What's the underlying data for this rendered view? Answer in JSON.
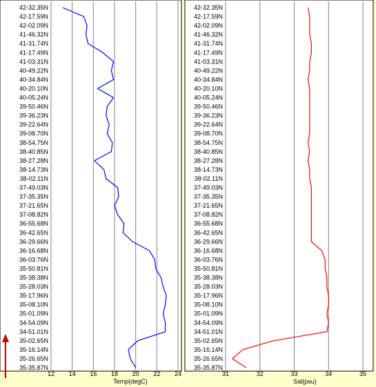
{
  "colors": {
    "background": "#ffffcc",
    "panel": "#ffffff",
    "grid": "#808080",
    "temperature_line": "#0000ff",
    "salinity_line": "#ff0000",
    "arrow": "#cc0000"
  },
  "latitude_labels": [
    "42-32.35N",
    "42-17.59N",
    "42-02.09N",
    "41-46.32N",
    "41-31.74N",
    "41-17.49N",
    "41-03.31N",
    "40-49.22N",
    "40-34.84N",
    "40-20.10N",
    "40-05.24N",
    "39-50.46N",
    "39-36.23N",
    "39-22.64N",
    "39-08.70N",
    "38-54.75N",
    "38-40.85N",
    "38-27.28N",
    "38-14.73N",
    "38-02.11N",
    "37-49.03N",
    "37-35.35N",
    "37-21.65N",
    "37-08.82N",
    "36-55.68N",
    "36-42.65N",
    "36-29.66N",
    "36-16.68N",
    "36-03.76N",
    "35-50.81N",
    "35-38.38N",
    "35-28.03N",
    "35-17.96N",
    "35-08.10N",
    "35-01.09N",
    "34-54.09N",
    "34-51.01N",
    "35-02.65N",
    "35-16.14N",
    "35-26.65N",
    "35-35.87N"
  ],
  "arrow": {
    "direction": "up",
    "icon": "arrow-up-icon"
  },
  "chart_data": [
    {
      "type": "line",
      "orientation": "vertical",
      "xlabel": "Temp(degC)",
      "xlim": [
        12,
        24
      ],
      "xticks": [
        "12",
        "14",
        "16",
        "18",
        "20",
        "22",
        "24"
      ],
      "y_categories_ref": "latitude_labels",
      "series": [
        {
          "color": "#0000ff",
          "values": [
            13.1,
            15.1,
            15.4,
            15.3,
            15.5,
            16.9,
            17.9,
            17.7,
            17.9,
            16.4,
            17.9,
            17.3,
            17.2,
            17.5,
            17.3,
            17.8,
            17.7,
            16.1,
            17.0,
            17.2,
            18.3,
            18.4,
            18.0,
            18.3,
            18.9,
            18.8,
            19.7,
            21.3,
            21.8,
            21.9,
            22.4,
            22.6,
            22.9,
            22.8,
            22.6,
            22.8,
            22.8,
            20.2,
            19.3,
            19.5,
            20.0
          ]
        }
      ]
    },
    {
      "type": "line",
      "orientation": "vertical",
      "xlabel": "Sal(psu)",
      "xlim": [
        31,
        35
      ],
      "xticks": [
        "31",
        "32",
        "33",
        "34",
        "35"
      ],
      "y_categories_ref": "latitude_labels",
      "series": [
        {
          "color": "#ff0000",
          "values": [
            33.4,
            33.45,
            33.45,
            33.45,
            33.5,
            33.5,
            33.45,
            33.45,
            33.4,
            33.45,
            33.45,
            33.45,
            33.45,
            33.45,
            33.45,
            33.4,
            33.45,
            33.4,
            33.45,
            33.45,
            33.5,
            33.5,
            33.5,
            33.5,
            33.5,
            33.5,
            33.5,
            33.8,
            33.9,
            33.9,
            33.95,
            33.95,
            34.0,
            34.0,
            33.95,
            34.0,
            33.95,
            32.4,
            31.5,
            31.2,
            31.6
          ]
        }
      ]
    }
  ]
}
